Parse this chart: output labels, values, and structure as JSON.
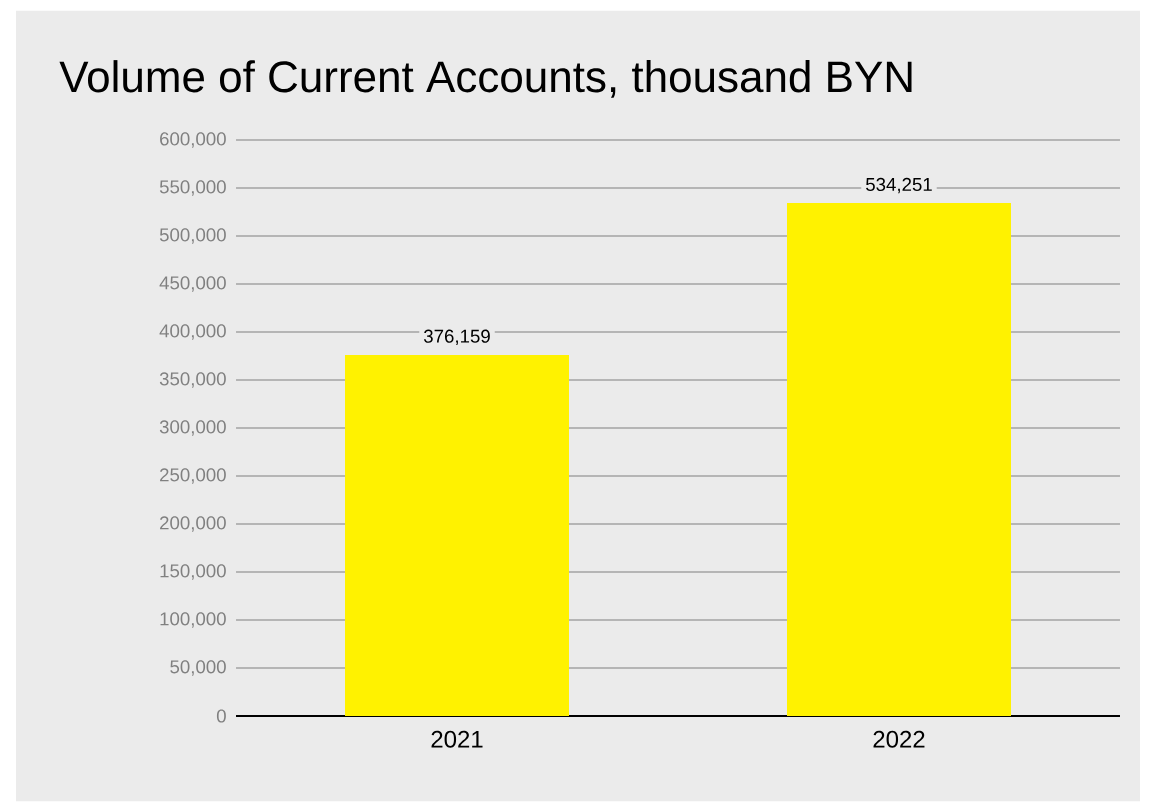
{
  "chart_data": {
    "type": "bar",
    "title": "Volume of Current Accounts, thousand BYN",
    "categories": [
      "2021",
      "2022"
    ],
    "values": [
      376159,
      534251
    ],
    "value_labels": [
      "376,159",
      "534,251"
    ],
    "color": "#fff200",
    "ylim": [
      0,
      600000
    ],
    "yticks": [
      0,
      {
        "value": 50000,
        "label": "50,000"
      },
      {
        "value": 100000,
        "label": "100,000"
      },
      {
        "value": 150000,
        "label": "150,000"
      },
      {
        "value": 200000,
        "label": "200,000"
      },
      {
        "value": 250000,
        "label": "250,000"
      },
      {
        "value": 300000,
        "label": "300,000"
      },
      {
        "value": 350000,
        "label": "350,000"
      },
      {
        "value": 400000,
        "label": "400,000"
      },
      {
        "value": 450000,
        "label": "450,000"
      },
      {
        "value": 500000,
        "label": "500,000"
      },
      {
        "value": 550000,
        "label": "550,000"
      },
      {
        "value": 600000,
        "label": "600,000"
      }
    ],
    "grid": "y"
  }
}
